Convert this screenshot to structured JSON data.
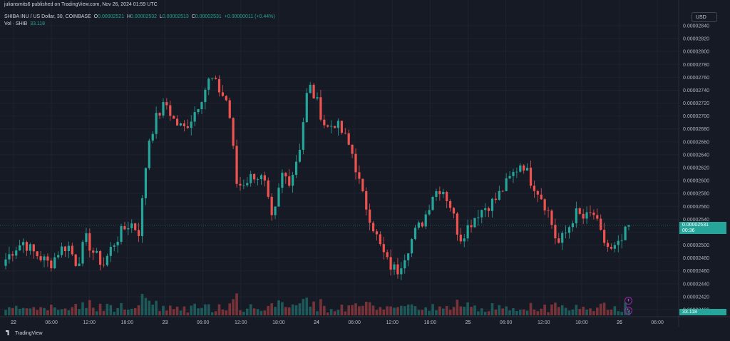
{
  "header": {
    "publish_line": "juliansmits6 published on TradingView.com, Nov 26, 2024 01:59 UTC",
    "symbol_line": "SHIBA INU / US Dollar, 30, COINBASE",
    "o_label": "O",
    "o_value": "0.00002521",
    "h_label": "H",
    "h_value": "0.00002532",
    "l_label": "L",
    "l_value": "0.00002513",
    "c_label": "C",
    "c_value": "0.00002531",
    "change": "+0.00000011 (+0.44%)",
    "vol_label": "Vol · SHIB",
    "vol_value": "33.118"
  },
  "currency_button": "USD",
  "price_badge": {
    "price": "0.00002531",
    "countdown": "00:36"
  },
  "volume_badge": "33.118",
  "footer_logo": "TradingView",
  "icons": {
    "tool_plus": "plus-icon",
    "tool_lightning": "lightning-icon"
  },
  "colors": {
    "up": "#26a69a",
    "down": "#ef5350",
    "background": "#161a25"
  },
  "chart_data": {
    "type": "candlestick",
    "symbol": "SHIBA INU / US Dollar",
    "interval": "30",
    "y_ticks": [
      "0.00002840",
      "0.00002820",
      "0.00002800",
      "0.00002780",
      "0.00002760",
      "0.00002740",
      "0.00002720",
      "0.00002700",
      "0.00002680",
      "0.00002660",
      "0.00002640",
      "0.00002620",
      "0.00002600",
      "0.00002580",
      "0.00002560",
      "0.00002540",
      "0.00002520",
      "0.00002500",
      "0.00002480",
      "0.00002460",
      "0.00002440",
      "0.00002420",
      "0.00002400"
    ],
    "y_range": [
      2.4e-05,
      2.84e-05
    ],
    "x_ticks": [
      "22",
      "06:00",
      "12:00",
      "18:00",
      "23",
      "06:00",
      "12:00",
      "18:00",
      "24",
      "06:00",
      "12:00",
      "18:00",
      "25",
      "06:00",
      "12:00",
      "18:00",
      "26",
      "06:00"
    ],
    "close_path_approx": [
      2.478e-05,
      2.495e-05,
      2.505e-05,
      2.49e-05,
      2.48e-05,
      2.47e-05,
      2.492e-05,
      2.5e-05,
      2.47e-05,
      2.51e-05,
      2.485e-05,
      2.47e-05,
      2.5e-05,
      2.52e-05,
      2.535e-05,
      2.52e-05,
      2.66e-05,
      2.7e-05,
      2.72e-05,
      2.69e-05,
      2.68e-05,
      2.7e-05,
      2.73e-05,
      2.76e-05,
      2.74e-05,
      2.72e-05,
      2.59e-05,
      2.6e-05,
      2.61e-05,
      2.6e-05,
      2.53e-05,
      2.61e-05,
      2.6e-05,
      2.65e-05,
      2.75e-05,
      2.72e-05,
      2.68e-05,
      2.69e-05,
      2.67e-05,
      2.64e-05,
      2.58e-05,
      2.54e-05,
      2.5e-05,
      2.47e-05,
      2.46e-05,
      2.49e-05,
      2.52e-05,
      2.54e-05,
      2.58e-05,
      2.59e-05,
      2.56e-05,
      2.51e-05,
      2.53e-05,
      2.55e-05,
      2.56e-05,
      2.57e-05,
      2.59e-05,
      2.61e-05,
      2.63e-05,
      2.6e-05,
      2.58e-05,
      2.55e-05,
      2.5e-05,
      2.52e-05,
      2.55e-05,
      2.54e-05,
      2.55e-05,
      2.51e-05,
      2.49e-05,
      2.5e-05,
      2.531e-05
    ]
  }
}
